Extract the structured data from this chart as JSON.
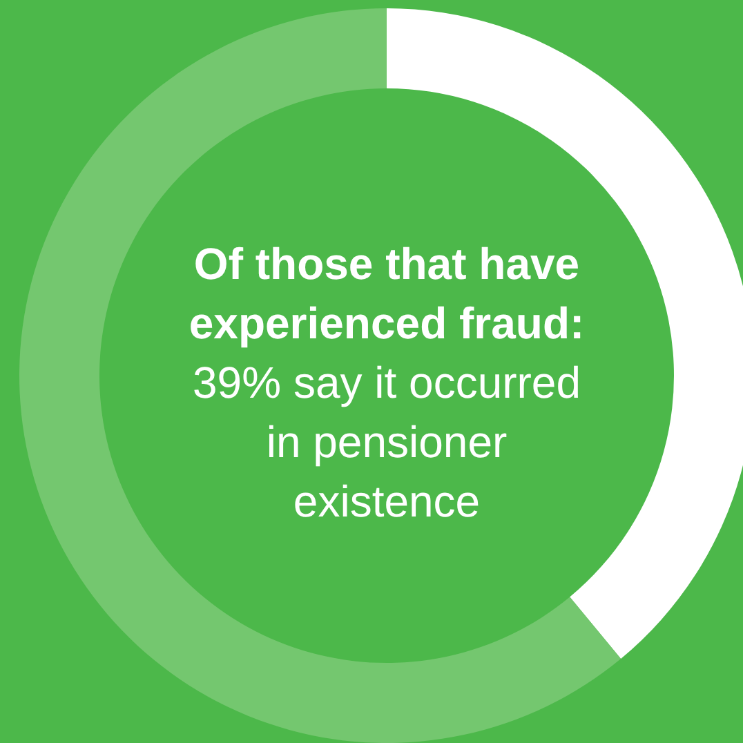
{
  "chart_data": {
    "type": "donut",
    "categories": [
      null,
      null
    ],
    "values": [
      39,
      61
    ],
    "colors": [
      "#ffffff",
      "#74c76f"
    ],
    "annotations": [
      "Of those that have experienced fraud:",
      "39% say it occurred in pensioner existence"
    ]
  }
}
